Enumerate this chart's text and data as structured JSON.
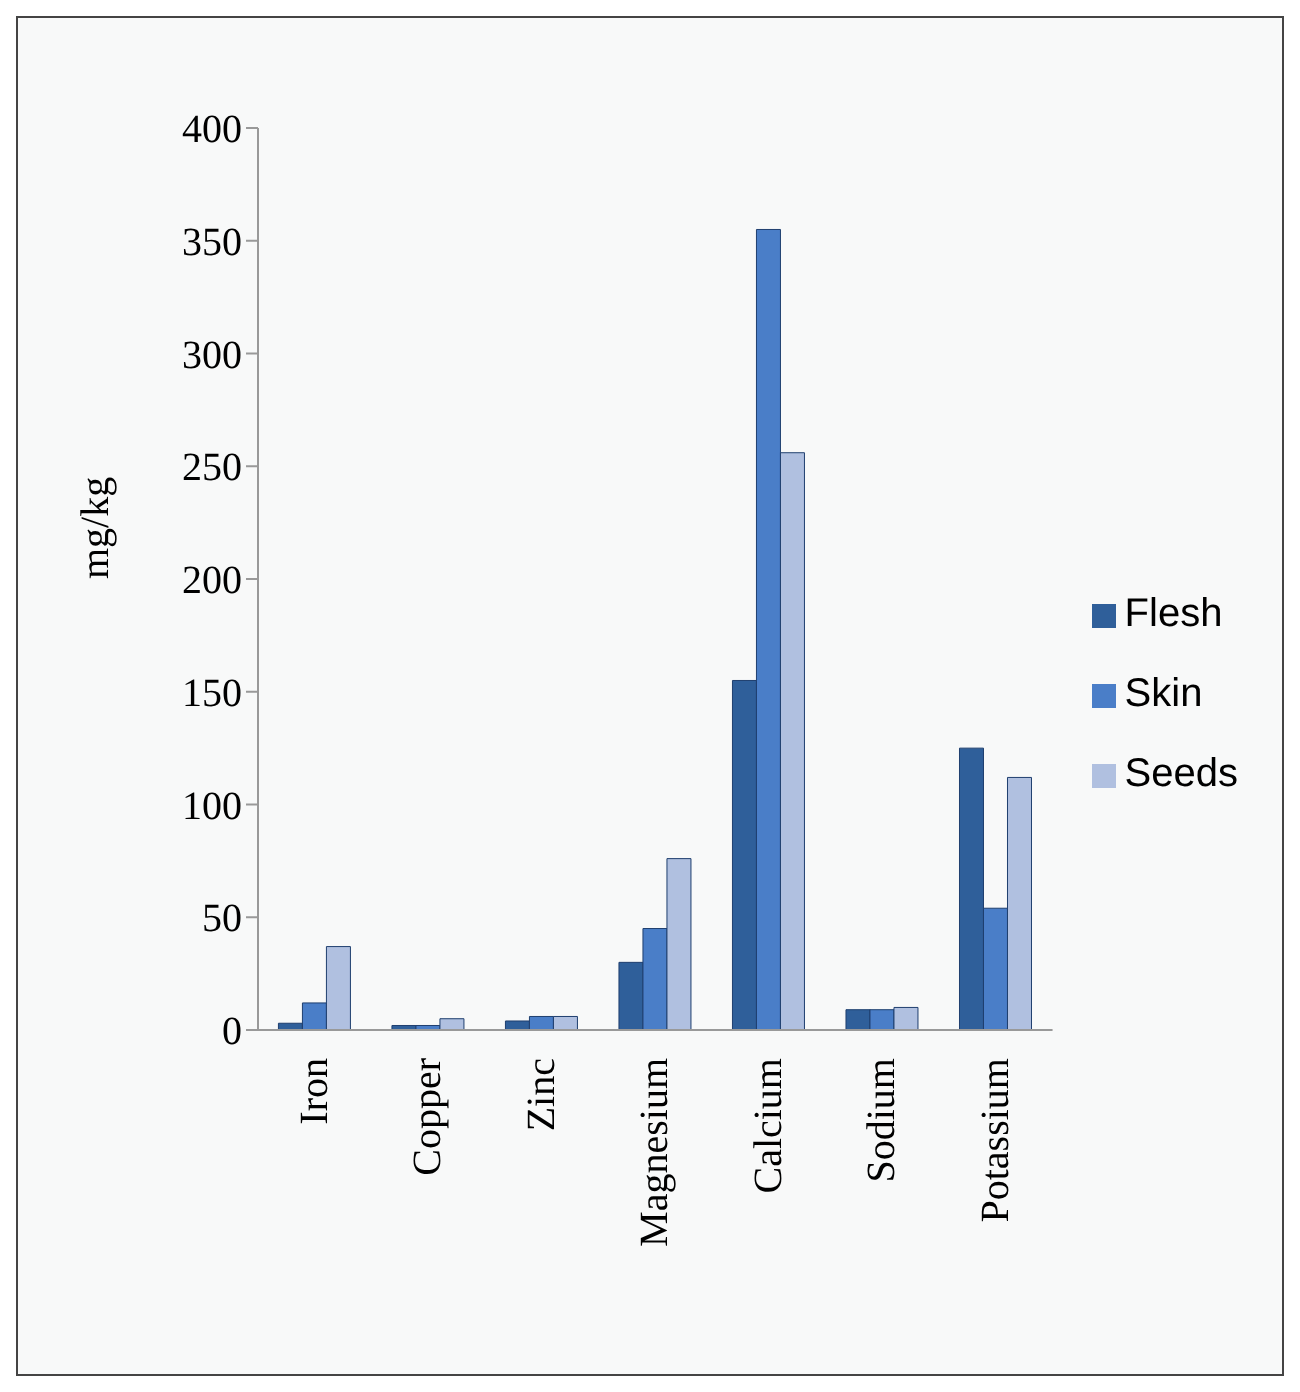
{
  "chart_data": {
    "type": "bar",
    "ylabel": "mg/kg",
    "categories": [
      "Iron",
      "Copper",
      "Zinc",
      "Magnesium",
      "Calcium",
      "Sodium",
      "Potassium"
    ],
    "series": [
      {
        "name": "Flesh",
        "color": "#2f5f9a",
        "values": [
          3,
          2,
          4,
          30,
          155,
          9,
          125
        ]
      },
      {
        "name": "Skin",
        "color": "#4a7ec8",
        "values": [
          12,
          2,
          6,
          45,
          355,
          9,
          54
        ]
      },
      {
        "name": "Seeds",
        "color": "#b0c0e0",
        "values": [
          37,
          5,
          6,
          76,
          256,
          10,
          112
        ]
      }
    ],
    "ylim": [
      0,
      400
    ],
    "yticks": [
      0,
      50,
      100,
      150,
      200,
      250,
      300,
      350,
      400
    ],
    "grid": false,
    "legend": "right"
  }
}
